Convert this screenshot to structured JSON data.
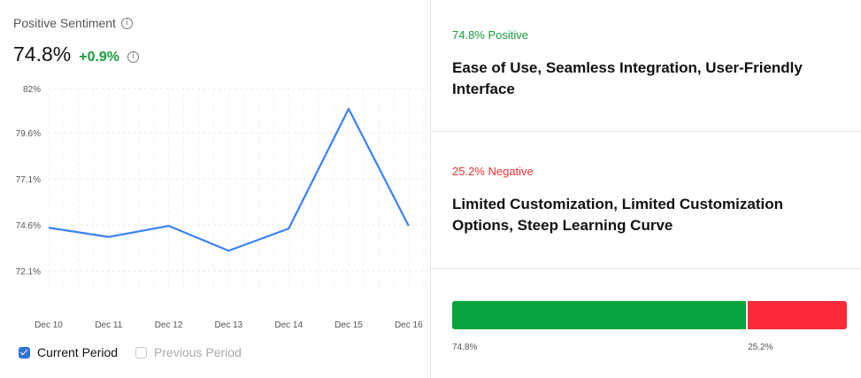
{
  "header": {
    "title": "Positive Sentiment",
    "value": "74.8%",
    "delta": "+0.9%"
  },
  "chart_data": {
    "type": "line",
    "x": [
      "Dec 10",
      "Dec 11",
      "Dec 12",
      "Dec 13",
      "Dec 14",
      "Dec 15",
      "Dec 16"
    ],
    "y_ticks": [
      "82%",
      "79.6%",
      "77.1%",
      "74.6%",
      "72.1%"
    ],
    "ylim": [
      71.1,
      82
    ],
    "series": [
      {
        "name": "Current Period",
        "values": [
          74.45,
          73.95,
          74.55,
          73.2,
          74.4,
          80.9,
          74.55
        ],
        "color": "#3b82f6"
      }
    ],
    "grid": true
  },
  "legend": {
    "current": "Current Period",
    "previous": "Previous Period"
  },
  "positive": {
    "label": "74.8% Positive",
    "themes": "Ease of Use, Seamless Integration, User-Friendly Interface",
    "color": "#07a33e"
  },
  "negative": {
    "label": "25.2% Negative",
    "themes": "Limited Customization, Limited Customization Options, Steep Learning Curve",
    "color": "#fb2a3a"
  },
  "breakdown": {
    "positive_share": 74.8,
    "negative_share": 25.2,
    "positive_label": "74.8%",
    "negative_label": "25.2%"
  }
}
